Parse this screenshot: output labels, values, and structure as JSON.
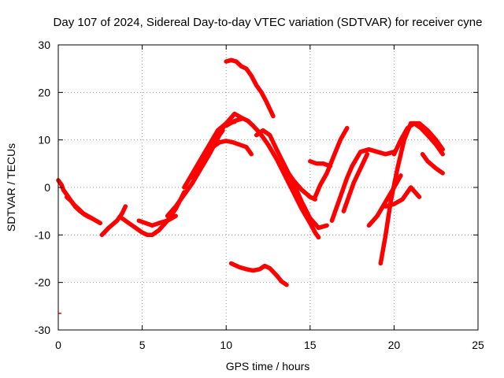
{
  "chart_data": {
    "type": "line",
    "title": "Day 107 of 2024, Sidereal Day-to-day VTEC variation (SDTVAR) for receiver cyne",
    "xlabel": "GPS time / hours",
    "ylabel": "SDTVAR / TECUs",
    "xlim": [
      0,
      25
    ],
    "ylim": [
      -30,
      30
    ],
    "x_ticks": [
      "0",
      "5",
      "10",
      "15",
      "20",
      "25"
    ],
    "y_ticks": [
      "30",
      "20",
      "10",
      "0",
      "-10",
      "-20",
      "-30"
    ],
    "grid": true,
    "color": "#ff0000",
    "series": [
      {
        "name": "trace-1",
        "x": [
          0.0,
          0.1,
          0.2,
          0.3,
          0.5,
          0.7,
          0.9,
          1.2,
          1.5,
          2.0,
          2.5
        ],
        "y": [
          1.5,
          1.0,
          0.5,
          -0.5,
          -1.5,
          -2.5,
          -3.5,
          -4.5,
          -5.5,
          -6.5,
          -7.5
        ]
      },
      {
        "name": "trace-2",
        "x": [
          0.5,
          0.8,
          1.0,
          1.3,
          1.6,
          1.8,
          2.0
        ],
        "y": [
          -2.0,
          -3.0,
          -4.0,
          -5.0,
          -5.8,
          -6.2,
          -6.5
        ]
      },
      {
        "name": "trace-3",
        "x": [
          2.6,
          3.0,
          3.5,
          3.8,
          4.0
        ],
        "y": [
          -10.0,
          -8.5,
          -7.0,
          -5.5,
          -4.0
        ]
      },
      {
        "name": "trace-4",
        "x": [
          3.8,
          4.2,
          4.6,
          5.0,
          5.3,
          5.6,
          6.0,
          6.5,
          7.0,
          7.5
        ],
        "y": [
          -6.5,
          -7.5,
          -8.5,
          -9.5,
          -10.0,
          -10.0,
          -9.0,
          -7.0,
          -4.5,
          -1.0
        ]
      },
      {
        "name": "trace-5",
        "x": [
          4.8,
          5.2,
          5.6,
          6.0,
          6.5,
          7.0
        ],
        "y": [
          -7.0,
          -7.5,
          -8.0,
          -7.5,
          -7.0,
          -6.0
        ]
      },
      {
        "name": "trace-6",
        "x": [
          6.5,
          7.0,
          7.5,
          8.0,
          8.5,
          9.0,
          9.3,
          9.6,
          9.8
        ],
        "y": [
          -6.0,
          -4.0,
          -1.5,
          1.0,
          4.0,
          7.0,
          9.0,
          11.0,
          12.0
        ]
      },
      {
        "name": "trace-7",
        "x": [
          7.5,
          8.0,
          8.5,
          9.0,
          9.5,
          10.0,
          10.5
        ],
        "y": [
          0.0,
          3.0,
          6.0,
          9.0,
          12.0,
          13.5,
          13.8
        ]
      },
      {
        "name": "trace-8",
        "x": [
          8.0,
          8.5,
          9.0,
          9.5,
          10.0,
          10.5,
          11.0
        ],
        "y": [
          2.0,
          5.0,
          8.0,
          11.0,
          13.5,
          15.5,
          14.5
        ]
      },
      {
        "name": "trace-9",
        "x": [
          8.8,
          9.2,
          9.6,
          10.0,
          10.4,
          10.8,
          11.2,
          11.5
        ],
        "y": [
          7.0,
          8.5,
          9.5,
          9.8,
          9.5,
          9.0,
          8.5,
          7.0
        ]
      },
      {
        "name": "trace-10",
        "x": [
          10.0,
          10.3,
          10.6,
          10.9,
          11.2,
          11.5,
          11.8,
          12.1,
          12.4,
          12.8
        ],
        "y": [
          26.5,
          26.8,
          26.5,
          25.5,
          25.0,
          23.5,
          21.5,
          20.0,
          18.0,
          15.0
        ]
      },
      {
        "name": "trace-11",
        "x": [
          10.0,
          10.5,
          11.0,
          11.3,
          11.6,
          12.0,
          12.5,
          13.0,
          13.5,
          14.0,
          14.5,
          15.0,
          15.3,
          15.5
        ],
        "y": [
          13.0,
          14.0,
          14.5,
          14.0,
          13.0,
          11.5,
          9.0,
          6.0,
          2.5,
          -1.0,
          -4.5,
          -7.5,
          -9.5,
          -10.5
        ]
      },
      {
        "name": "trace-12",
        "x": [
          11.8,
          12.2,
          12.6,
          13.0,
          13.5,
          14.0,
          14.5,
          15.0,
          15.5,
          16.0
        ],
        "y": [
          11.0,
          12.0,
          11.0,
          8.0,
          4.5,
          1.0,
          -3.0,
          -6.5,
          -8.5,
          -8.0
        ]
      },
      {
        "name": "trace-13",
        "x": [
          10.3,
          10.8,
          11.2,
          11.6,
          12.0,
          12.3,
          12.6,
          13.0,
          13.3,
          13.6
        ],
        "y": [
          -16.0,
          -16.8,
          -17.2,
          -17.5,
          -17.2,
          -16.5,
          -17.0,
          -18.5,
          -19.8,
          -20.5
        ]
      },
      {
        "name": "trace-14",
        "x": [
          13.5,
          14.0,
          14.5,
          15.0,
          15.3
        ],
        "y": [
          4.0,
          1.5,
          -0.5,
          -2.0,
          -2.5
        ]
      },
      {
        "name": "trace-15",
        "x": [
          15.0,
          15.4,
          15.8,
          16.2
        ],
        "y": [
          5.5,
          5.0,
          5.0,
          4.5
        ]
      },
      {
        "name": "trace-16",
        "x": [
          15.3,
          15.6,
          16.0,
          16.4,
          16.8,
          17.2
        ],
        "y": [
          -2.0,
          0.5,
          3.0,
          6.5,
          10.0,
          12.5
        ]
      },
      {
        "name": "trace-17",
        "x": [
          16.3,
          16.6,
          16.9,
          17.2,
          17.5
        ],
        "y": [
          -7.0,
          -4.0,
          -1.0,
          2.0,
          4.5
        ]
      },
      {
        "name": "trace-18",
        "x": [
          17.0,
          17.3,
          17.6,
          18.0,
          18.4
        ],
        "y": [
          -5.0,
          -2.0,
          1.0,
          4.0,
          7.0
        ]
      },
      {
        "name": "trace-19",
        "x": [
          17.5,
          18.0,
          18.5,
          19.0,
          19.5,
          20.0
        ],
        "y": [
          4.5,
          7.5,
          8.0,
          7.5,
          7.0,
          7.5
        ]
      },
      {
        "name": "trace-20",
        "x": [
          18.5,
          19.0,
          19.5,
          20.0,
          20.4
        ],
        "y": [
          -8.0,
          -6.0,
          -3.0,
          0.0,
          2.5
        ]
      },
      {
        "name": "trace-21",
        "x": [
          19.2,
          19.5,
          19.8,
          20.2,
          20.6,
          21.0,
          21.5,
          22.0,
          22.5,
          22.9
        ],
        "y": [
          -16.0,
          -10.0,
          -3.0,
          4.0,
          10.0,
          13.5,
          13.5,
          12.0,
          10.0,
          8.0
        ]
      },
      {
        "name": "trace-22",
        "x": [
          20.0,
          20.4,
          20.8,
          21.2,
          21.6,
          22.0,
          22.5,
          22.9
        ],
        "y": [
          7.0,
          10.0,
          12.5,
          13.5,
          12.5,
          11.0,
          9.0,
          7.0
        ]
      },
      {
        "name": "trace-23",
        "x": [
          21.7,
          22.0,
          22.5,
          22.9
        ],
        "y": [
          7.0,
          5.5,
          4.0,
          3.0
        ]
      },
      {
        "name": "trace-24",
        "x": [
          19.5,
          20.0,
          20.5,
          21.0,
          21.5
        ],
        "y": [
          -4.0,
          -3.5,
          -2.5,
          0.0,
          -2.0
        ]
      }
    ],
    "stub": {
      "x": 0.0,
      "y": -26.5
    }
  }
}
